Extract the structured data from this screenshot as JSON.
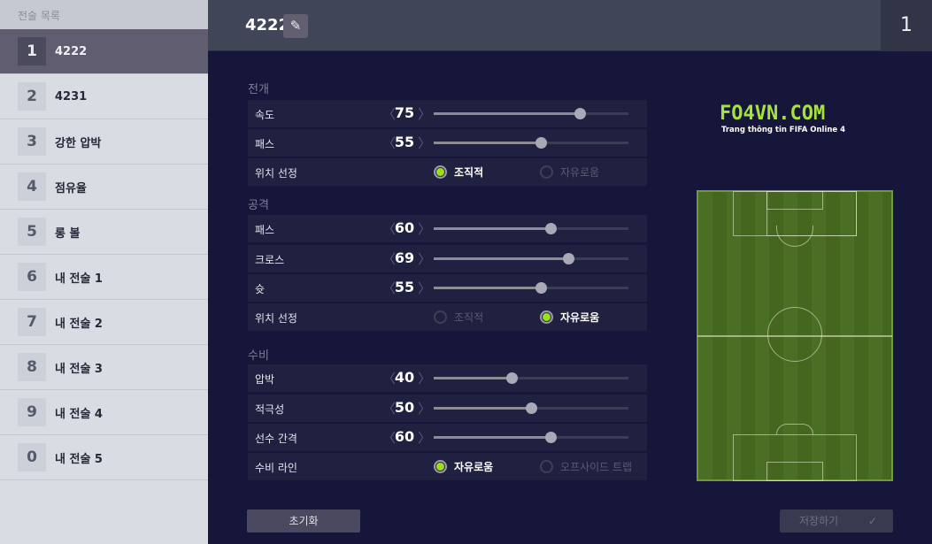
{
  "sidebar": {
    "header": "전술 목록",
    "items": [
      {
        "num": "1",
        "label": "4222",
        "selected": true
      },
      {
        "num": "2",
        "label": "4231"
      },
      {
        "num": "3",
        "label": "강한 압박"
      },
      {
        "num": "4",
        "label": "점유율"
      },
      {
        "num": "5",
        "label": "롱 볼"
      },
      {
        "num": "6",
        "label": "내 전술 1"
      },
      {
        "num": "7",
        "label": "내 전술 2"
      },
      {
        "num": "8",
        "label": "내 전술 3"
      },
      {
        "num": "9",
        "label": "내 전술 4"
      },
      {
        "num": "0",
        "label": "내 전술 5"
      }
    ]
  },
  "header": {
    "title": "4222",
    "slot_number": "1",
    "edit_icon": "pencil-edit-icon"
  },
  "sections": {
    "build": {
      "title": "전개",
      "speed": {
        "label": "속도",
        "value": 75
      },
      "pass": {
        "label": "패스",
        "value": 55
      },
      "positioning": {
        "label": "위치 선정",
        "options": [
          "조직적",
          "자유로움"
        ],
        "selected": "조직적"
      }
    },
    "attack": {
      "title": "공격",
      "pass": {
        "label": "패스",
        "value": 60
      },
      "cross": {
        "label": "크로스",
        "value": 69
      },
      "shoot": {
        "label": "슛",
        "value": 55
      },
      "positioning": {
        "label": "위치 선정",
        "options": [
          "조직적",
          "자유로움"
        ],
        "selected": "자유로움"
      }
    },
    "defense": {
      "title": "수비",
      "pressure": {
        "label": "압박",
        "value": 40
      },
      "aggression": {
        "label": "적극성",
        "value": 50
      },
      "width": {
        "label": "선수 간격",
        "value": 60
      },
      "line": {
        "label": "수비 라인",
        "options": [
          "자유로움",
          "오프사이드 트랩"
        ],
        "selected": "자유로움"
      }
    }
  },
  "logo": {
    "text": "FO4VN.COM",
    "subtitle": "Trang thông tin FIFA Online 4"
  },
  "buttons": {
    "reset": "초기화",
    "save": "저장하기",
    "save_icon": "check-icon"
  },
  "colors": {
    "accent": "#9ce01a",
    "background": "#16163a",
    "pitch": "#4b6e25"
  }
}
